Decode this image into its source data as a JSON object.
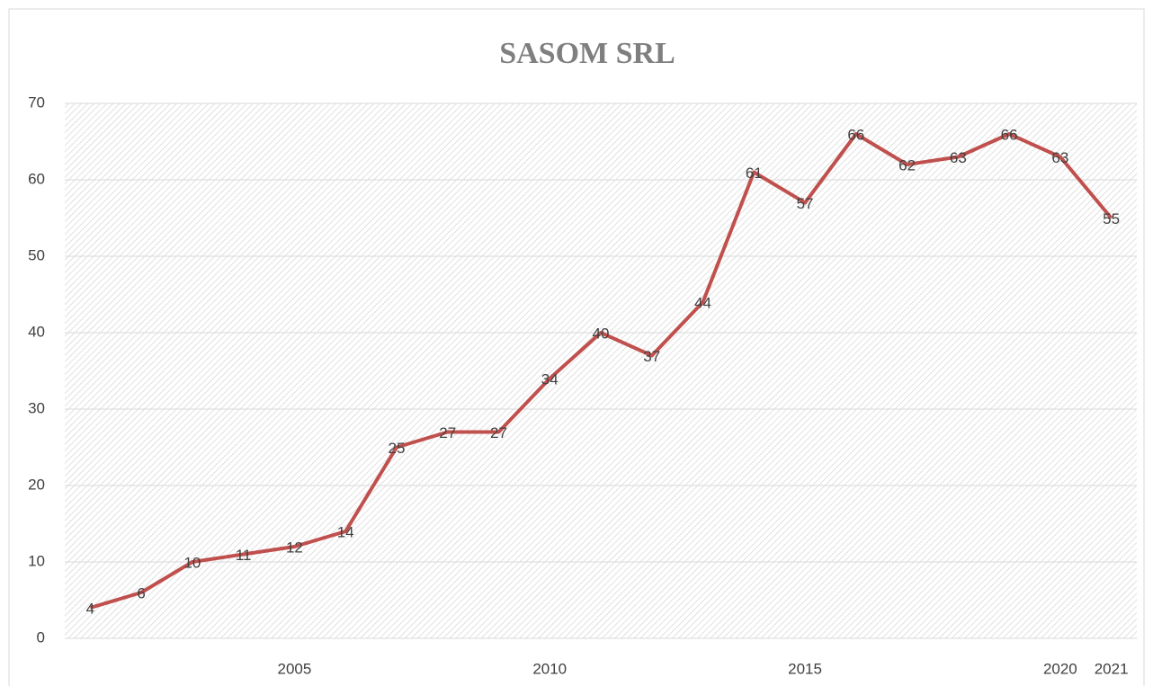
{
  "chart_data": {
    "type": "line",
    "title": "SASOM SRL",
    "x": [
      2001,
      2002,
      2003,
      2004,
      2005,
      2006,
      2007,
      2008,
      2009,
      2010,
      2011,
      2012,
      2013,
      2014,
      2015,
      2016,
      2017,
      2018,
      2019,
      2020,
      2021
    ],
    "series": [
      {
        "name": "SASOM SRL",
        "color": "#c0504d",
        "values": [
          4,
          6,
          10,
          11,
          12,
          14,
          25,
          27,
          27,
          34,
          40,
          37,
          44,
          61,
          57,
          66,
          62,
          63,
          66,
          63,
          55
        ]
      }
    ],
    "xlim": [
      2000.5,
      2021.5
    ],
    "xticks": [
      2005,
      2010,
      2015,
      2020,
      2021
    ],
    "ylim": [
      0,
      70
    ],
    "yticks": [
      0,
      10,
      20,
      30,
      40,
      50,
      60,
      70
    ],
    "grid": true
  }
}
